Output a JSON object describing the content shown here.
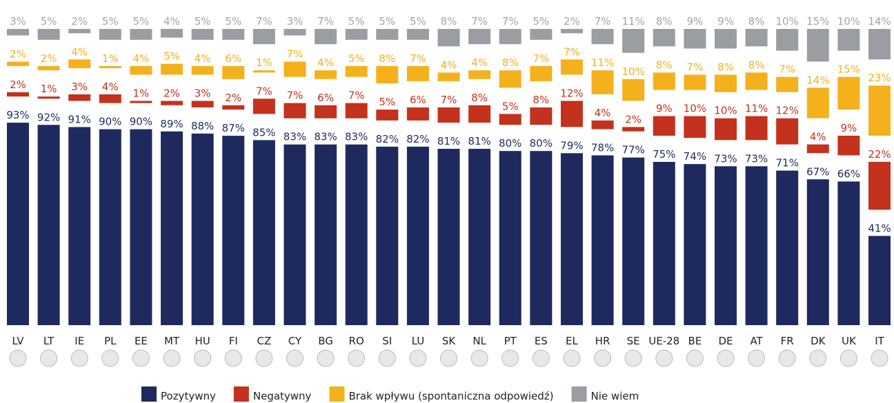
{
  "chart_data": {
    "type": "bar",
    "stacked": true,
    "legend": "bottom",
    "categories": [
      "LV",
      "LT",
      "IE",
      "PL",
      "EE",
      "MT",
      "HU",
      "FI",
      "CZ",
      "CY",
      "BG",
      "RO",
      "SI",
      "LU",
      "SK",
      "NL",
      "PT",
      "ES",
      "EL",
      "HR",
      "SE",
      "UE-28",
      "BE",
      "DE",
      "AT",
      "FR",
      "DK",
      "UK",
      "IT"
    ],
    "series": [
      {
        "name": "Pozytywny",
        "color": "#1e2a5e",
        "values": [
          93,
          92,
          91,
          90,
          90,
          89,
          88,
          87,
          85,
          83,
          83,
          83,
          82,
          82,
          81,
          81,
          80,
          80,
          79,
          78,
          77,
          75,
          74,
          73,
          73,
          71,
          67,
          66,
          41
        ],
        "value_labels": [
          "93%",
          "92%",
          "91%",
          "90%",
          "90%",
          "89%",
          "88%",
          "87%",
          "85%",
          "83%",
          "83%",
          "83%",
          "82%",
          "82%",
          "81%",
          "81%",
          "80%",
          "80%",
          "79%",
          "78%",
          "77%",
          "75%",
          "74%",
          "73%",
          "73%",
          "71%",
          "67%",
          "66%",
          "41%"
        ]
      },
      {
        "name": "Negatywny",
        "color": "#c4311d",
        "values": [
          2,
          1,
          3,
          4,
          1,
          2,
          3,
          2,
          7,
          7,
          6,
          7,
          5,
          6,
          7,
          8,
          5,
          8,
          12,
          4,
          2,
          9,
          10,
          10,
          11,
          12,
          4,
          9,
          22
        ],
        "value_labels": [
          "2%",
          "1%",
          "3%",
          "4%",
          "1%",
          "2%",
          "3%",
          "2%",
          "7%",
          "7%",
          "6%",
          "7%",
          "5%",
          "6%",
          "7%",
          "8%",
          "5%",
          "8%",
          "12%",
          "4%",
          "2%",
          "9%",
          "10%",
          "10%",
          "11%",
          "12%",
          "4%",
          "9%",
          "22%"
        ]
      },
      {
        "name": "Brak wpływu (spontaniczna odpowiedź)",
        "color": "#f4b11c",
        "values": [
          2,
          2,
          4,
          1,
          4,
          5,
          4,
          6,
          1,
          7,
          4,
          5,
          8,
          7,
          4,
          4,
          8,
          7,
          7,
          11,
          10,
          8,
          7,
          8,
          8,
          7,
          14,
          15,
          23
        ],
        "value_labels": [
          "2%",
          "2%",
          "4%",
          "1%",
          "4%",
          "5%",
          "4%",
          "6%",
          "1%",
          "7%",
          "4%",
          "5%",
          "8%",
          "7%",
          "4%",
          "4%",
          "8%",
          "7%",
          "7%",
          "11%",
          "10%",
          "8%",
          "7%",
          "8%",
          "8%",
          "7%",
          "14%",
          "15%",
          "23%"
        ]
      },
      {
        "name": "Nie wiem",
        "color": "#9a9da2",
        "values": [
          3,
          5,
          2,
          5,
          5,
          4,
          5,
          5,
          7,
          3,
          7,
          5,
          5,
          5,
          8,
          7,
          7,
          5,
          2,
          7,
          11,
          8,
          9,
          9,
          8,
          10,
          15,
          10,
          14
        ],
        "value_labels": [
          "3%",
          "5%",
          "2%",
          "5%",
          "5%",
          "4%",
          "5%",
          "5%",
          "7%",
          "3%",
          "7%",
          "5%",
          "5%",
          "5%",
          "8%",
          "7%",
          "7%",
          "5%",
          "2%",
          "7%",
          "11%",
          "8%",
          "9%",
          "9%",
          "8%",
          "10%",
          "15%",
          "10%",
          "14%"
        ]
      }
    ]
  }
}
